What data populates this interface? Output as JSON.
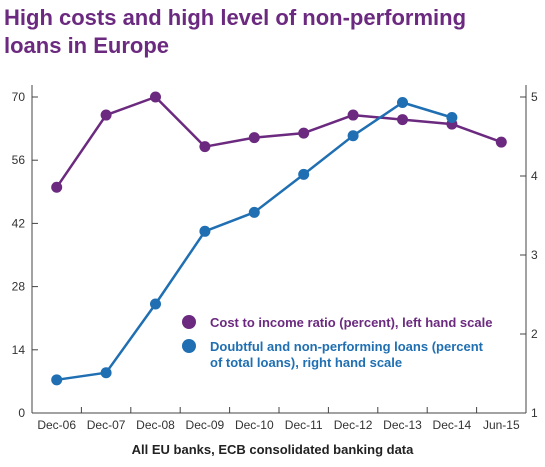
{
  "title_lines": [
    "High costs and high level of non-performing",
    "loans in Europe"
  ],
  "caption": "All EU banks, ECB consolidated banking data",
  "colors": {
    "title": "#6b2a7f",
    "cost_series": "#6b2a7f",
    "npl_series": "#1f6fb2",
    "axis": "#444444"
  },
  "chart_data": {
    "type": "line",
    "title": "High costs and high level of non-performing loans in Europe",
    "x_tick_labels": [
      "Dec-06",
      "Dec-07",
      "Dec-08",
      "Dec-09",
      "Dec-10",
      "Dec-11",
      "Dec-12",
      "Dec-13",
      "Dec-14",
      "Jun-15"
    ],
    "x": [
      "Dec-06",
      "Dec-07",
      "Dec-08",
      "Dec-09",
      "Dec-10",
      "Dec-11",
      "Dec-12",
      "Dec-13",
      "Dec-14",
      "Jun-15"
    ],
    "y_left": {
      "ticks": [
        0,
        14,
        28,
        42,
        56,
        70
      ],
      "ylim": [
        0,
        70
      ]
    },
    "y_right": {
      "ticks": [
        1,
        2,
        3,
        4,
        5
      ],
      "ylim": [
        1,
        5
      ]
    },
    "grid": false,
    "legend_position": "lower-right inside plot",
    "series": [
      {
        "name": "Cost to income ratio (percent), left hand scale",
        "axis": "left",
        "x": [
          "Dec-06",
          "Dec-07",
          "Dec-08",
          "Dec-09",
          "Dec-10",
          "Dec-11",
          "Dec-12",
          "Dec-13",
          "Dec-14",
          "Jun-15"
        ],
        "values": [
          50,
          66,
          70,
          59,
          61,
          62,
          66,
          65,
          64,
          60
        ]
      },
      {
        "name": "Doubtful and non-performing loans (percent of total loans), right hand scale",
        "axis": "right",
        "x": [
          "Dec-06",
          "Dec-07",
          "Dec-08",
          "Dec-09",
          "Dec-10",
          "Dec-11",
          "Dec-12",
          "Dec-13",
          "Dec-14"
        ],
        "values": [
          1.42,
          1.51,
          2.38,
          3.3,
          3.54,
          4.02,
          4.51,
          4.93,
          4.74
        ]
      }
    ]
  },
  "legend": [
    {
      "lines": [
        "Cost to income ratio (percent), left hand scale"
      ]
    },
    {
      "lines": [
        "Doubtful and non-performing loans (percent",
        "of total loans), right hand scale"
      ]
    }
  ]
}
